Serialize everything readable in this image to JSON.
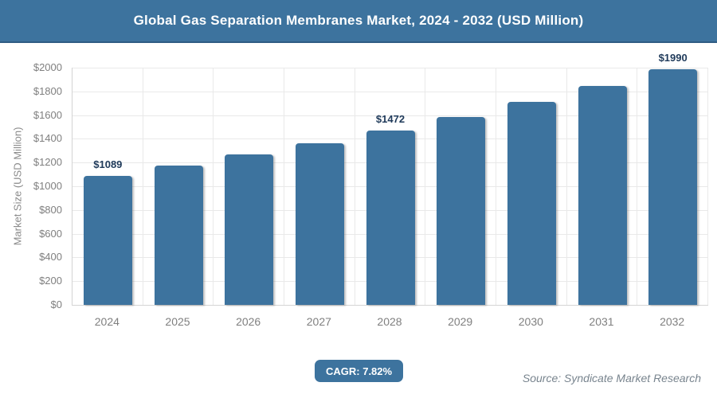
{
  "header": {
    "title": "Global Gas Separation Membranes Market, 2024 - 2032 (USD Million)"
  },
  "chart_data": {
    "type": "bar",
    "title": "Global Gas Separation Membranes Market, 2024 - 2032 (USD Million)",
    "categories": [
      "2024",
      "2025",
      "2026",
      "2027",
      "2028",
      "2029",
      "2030",
      "2031",
      "2032"
    ],
    "values": [
      1089,
      1174,
      1266,
      1365,
      1472,
      1587,
      1711,
      1845,
      1990
    ],
    "data_labels": [
      "$1089",
      null,
      null,
      null,
      "$1472",
      null,
      null,
      null,
      "$1990"
    ],
    "xlabel": "",
    "ylabel": "Market Size (USD Million)",
    "ylim": [
      0,
      2000
    ],
    "ytick_step": 200,
    "ytick_labels": [
      "$0",
      "$200",
      "$400",
      "$600",
      "$800",
      "$1000",
      "$1200",
      "$1400",
      "$1600",
      "$1800",
      "$2000"
    ],
    "grid": true,
    "legend": "none",
    "bar_color": "#3d739e",
    "data_label_color": "#1f3a5a"
  },
  "footer": {
    "cagr_label": "CAGR: 7.82%",
    "source": "Source: Syndicate Market Research"
  },
  "colors": {
    "header_bg": "#3d739e",
    "header_border": "#2e5c83",
    "bar": "#3d739e",
    "gridline": "#e9e9e9",
    "axis_line": "#d4d4d4",
    "tick_text": "#7f7f7f",
    "source_text": "#78848e",
    "badge_bg": "#3d739e"
  }
}
